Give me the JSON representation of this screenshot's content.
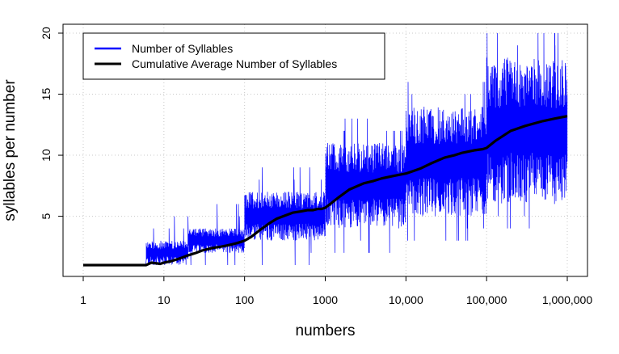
{
  "chart_data": {
    "type": "line",
    "title": "",
    "xlabel": "numbers",
    "ylabel": "syllables per number",
    "x_scale": "log10",
    "xlim": [
      1,
      1000000
    ],
    "ylim": [
      0,
      20
    ],
    "x_ticks": [
      1,
      10,
      100,
      1000,
      10000,
      100000,
      1000000
    ],
    "x_tick_labels": [
      "1",
      "10",
      "100",
      "1000",
      "10,000",
      "100,000",
      "1,000,000"
    ],
    "y_ticks": [
      5,
      10,
      15,
      20
    ],
    "y_tick_labels": [
      "5",
      "10",
      "15",
      "20"
    ],
    "grid": true,
    "legend_position": "top-left",
    "series": [
      {
        "name": "Number of Syllables",
        "color": "#0000ff",
        "style": "thin-noisy",
        "bands": [
          {
            "x": [
              1,
              6
            ],
            "min": 1,
            "max": 1
          },
          {
            "x": [
              6,
              20
            ],
            "min": 1,
            "max": 3
          },
          {
            "x": [
              20,
              100
            ],
            "min": 2,
            "max": 4
          },
          {
            "x": [
              100,
              1000
            ],
            "min": 3,
            "max": 7
          },
          {
            "x": [
              1000,
              10000
            ],
            "min": 4,
            "max": 11
          },
          {
            "x": [
              10000,
              100000
            ],
            "min": 5,
            "max": 14
          },
          {
            "x": [
              100000,
              1000000
            ],
            "min": 6,
            "max": 18
          }
        ],
        "max_value": 20
      },
      {
        "name": "Cumulative Average Number of Syllables",
        "color": "#000000",
        "style": "thick",
        "x": [
          1,
          6,
          7,
          9,
          10,
          12,
          15,
          20,
          25,
          30,
          40,
          50,
          60,
          70,
          80,
          90,
          100,
          120,
          150,
          200,
          250,
          300,
          400,
          500,
          600,
          700,
          800,
          900,
          1000,
          1100,
          1500,
          2000,
          3000,
          4000,
          5000,
          7000,
          10000,
          15000,
          20000,
          30000,
          40000,
          50000,
          70000,
          90000,
          100000,
          130000,
          200000,
          300000,
          500000,
          700000,
          1000000
        ],
        "y": [
          1,
          1,
          1.2,
          1.1,
          1.2,
          1.3,
          1.5,
          1.8,
          2.0,
          2.2,
          2.4,
          2.5,
          2.6,
          2.7,
          2.8,
          2.9,
          3.0,
          3.3,
          3.8,
          4.4,
          4.8,
          5.0,
          5.3,
          5.4,
          5.5,
          5.5,
          5.6,
          5.6,
          5.7,
          5.9,
          6.6,
          7.2,
          7.7,
          7.9,
          8.1,
          8.3,
          8.5,
          8.9,
          9.3,
          9.8,
          10.0,
          10.2,
          10.4,
          10.5,
          10.6,
          11.2,
          12.0,
          12.4,
          12.8,
          13.0,
          13.2
        ]
      }
    ]
  }
}
